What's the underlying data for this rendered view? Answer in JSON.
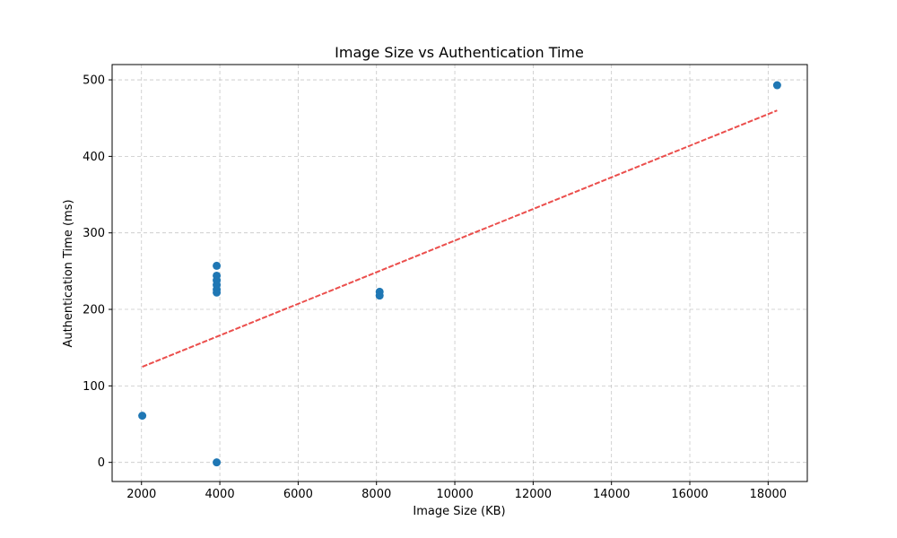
{
  "chart_data": {
    "type": "scatter",
    "title": "Image Size vs Authentication Time",
    "xlabel": "Image Size (KB)",
    "ylabel": "Authentication Time (ms)",
    "xlim": [
      1250,
      19000
    ],
    "ylim": [
      -25,
      520
    ],
    "xticks": [
      2000,
      4000,
      6000,
      8000,
      10000,
      12000,
      14000,
      16000,
      18000
    ],
    "yticks": [
      0,
      100,
      200,
      300,
      400,
      500
    ],
    "grid": true,
    "series": [
      {
        "color": "#1f77b4",
        "points": [
          {
            "x": 2020,
            "y": 61
          },
          {
            "x": 3920,
            "y": 257
          },
          {
            "x": 3920,
            "y": 244
          },
          {
            "x": 3920,
            "y": 238
          },
          {
            "x": 3920,
            "y": 232
          },
          {
            "x": 3920,
            "y": 226
          },
          {
            "x": 3920,
            "y": 222
          },
          {
            "x": 3920,
            "y": 0
          },
          {
            "x": 8080,
            "y": 223
          },
          {
            "x": 8080,
            "y": 218
          },
          {
            "x": 18230,
            "y": 493
          }
        ]
      }
    ],
    "trendline": {
      "color": "#e8302d",
      "style": "dashed",
      "x": [
        2020,
        18230
      ],
      "y": [
        125,
        460
      ]
    }
  }
}
